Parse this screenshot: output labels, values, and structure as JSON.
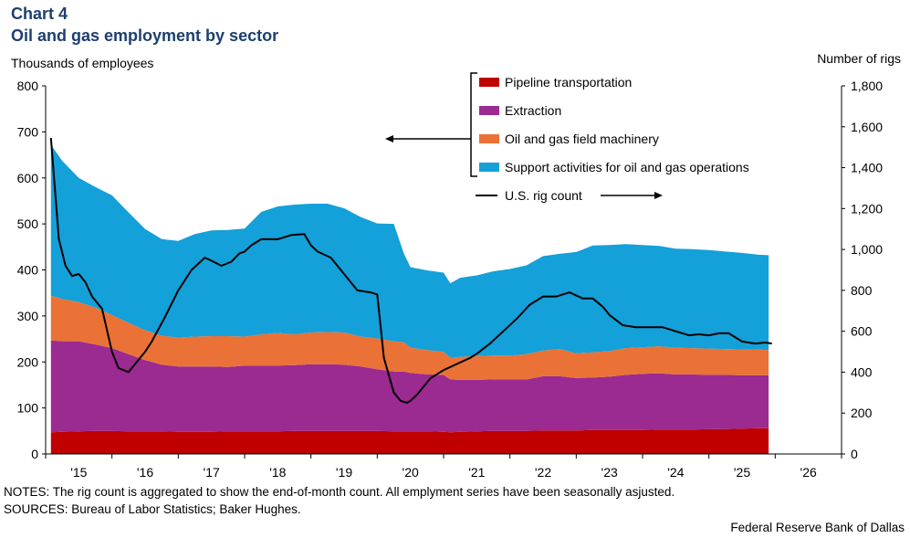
{
  "chart_number": "Chart 4",
  "chart_title": "Oil and gas employment by sector",
  "notes": "NOTES: The rig count is aggregated to show the end-of-month count. All emplyment series have been seasonally asjusted.",
  "sources": "SOURCES: Bureau of Labor Statistics; Baker Hughes.",
  "credit": "Federal Reserve Bank of Dallas",
  "colors": {
    "pipeline": "#c00000",
    "extraction": "#9b2a91",
    "machinery": "#ea7236",
    "support": "#14a0d8",
    "rig": "#000000"
  },
  "chart_data": {
    "type": "area",
    "xlabel": "",
    "ylabel": "Thousands  of employees",
    "y2label": "Number of rigs",
    "ylim": [
      0,
      800
    ],
    "y2lim": [
      0,
      1800
    ],
    "xlim": [
      2014.5,
      2026.5
    ],
    "xtick_values": [
      2015,
      2016,
      2017,
      2018,
      2019,
      2020,
      2021,
      2022,
      2023,
      2024,
      2025,
      2026
    ],
    "xtick_labels": [
      "'15",
      "'16",
      "'17",
      "'18",
      "'19",
      "'20",
      "'21",
      "'22",
      "'23",
      "'24",
      "'25",
      "'26"
    ],
    "ytick_values": [
      0,
      100,
      200,
      300,
      400,
      500,
      600,
      700,
      800
    ],
    "ytick_labels": [
      "0",
      "100",
      "200",
      "300",
      "400",
      "500",
      "600",
      "700",
      "800"
    ],
    "y2tick_values": [
      0,
      200,
      400,
      600,
      800,
      1000,
      1200,
      1400,
      1600,
      1800
    ],
    "y2tick_labels": [
      "0",
      "200",
      "400",
      "600",
      "800",
      "1,000",
      "1,200",
      "1,400",
      "1,600",
      "1,800"
    ],
    "legend_position": "top-center",
    "x": [
      2014.58,
      2014.75,
      2015.0,
      2015.25,
      2015.5,
      2015.75,
      2016.0,
      2016.25,
      2016.5,
      2016.75,
      2017.0,
      2017.25,
      2017.5,
      2017.75,
      2018.0,
      2018.25,
      2018.5,
      2018.75,
      2019.0,
      2019.25,
      2019.5,
      2019.75,
      2019.9,
      2020.0,
      2020.25,
      2020.5,
      2020.6,
      2020.75,
      2021.0,
      2021.25,
      2021.5,
      2021.75,
      2022.0,
      2022.25,
      2022.5,
      2022.75,
      2023.0,
      2023.25,
      2023.5,
      2023.75,
      2024.0,
      2024.25,
      2024.5,
      2024.75,
      2025.0,
      2025.25,
      2025.4
    ],
    "series": [
      {
        "name": "Pipeline transportation",
        "values": [
          47,
          48,
          49,
          50,
          50,
          49,
          49,
          49,
          48,
          48,
          48,
          49,
          49,
          49,
          49,
          50,
          50,
          50,
          50,
          50,
          50,
          49,
          49,
          49,
          49,
          48,
          47,
          48,
          49,
          50,
          50,
          50,
          51,
          51,
          51,
          52,
          52,
          52,
          52,
          53,
          53,
          53,
          54,
          54,
          55,
          56,
          56
        ]
      },
      {
        "name": "Extraction",
        "values": [
          200,
          197,
          196,
          188,
          180,
          168,
          155,
          145,
          142,
          142,
          142,
          140,
          143,
          143,
          143,
          143,
          145,
          145,
          144,
          140,
          134,
          130,
          130,
          127,
          124,
          124,
          115,
          113,
          112,
          112,
          112,
          112,
          118,
          118,
          114,
          114,
          116,
          120,
          122,
          122,
          120,
          120,
          118,
          118,
          116,
          115,
          115
        ]
      },
      {
        "name": "Oil and gas field machinery",
        "values": [
          97,
          92,
          85,
          80,
          72,
          68,
          65,
          63,
          63,
          65,
          66,
          67,
          63,
          68,
          71,
          67,
          69,
          70,
          70,
          65,
          67,
          66,
          64,
          55,
          53,
          50,
          47,
          50,
          52,
          52,
          52,
          55,
          56,
          59,
          54,
          55,
          56,
          58,
          58,
          59,
          58,
          57,
          57,
          56,
          56,
          56,
          55
        ]
      },
      {
        "name": "Support activities for oil and gas operations",
        "values": [
          328,
          300,
          270,
          262,
          260,
          240,
          220,
          210,
          210,
          223,
          230,
          231,
          235,
          266,
          275,
          282,
          280,
          279,
          270,
          260,
          250,
          255,
          193,
          175,
          173,
          172,
          162,
          172,
          175,
          183,
          188,
          193,
          205,
          207,
          220,
          232,
          230,
          226,
          222,
          218,
          215,
          215,
          214,
          212,
          210,
          206,
          206
        ]
      },
      {
        "name": "U.S. rig count",
        "axis": "right",
        "x": [
          2014.58,
          2014.7,
          2014.8,
          2014.9,
          2015.0,
          2015.1,
          2015.2,
          2015.35,
          2015.5,
          2015.6,
          2015.75,
          2015.9,
          2016.0,
          2016.1,
          2016.3,
          2016.5,
          2016.7,
          2016.9,
          2017.0,
          2017.15,
          2017.3,
          2017.42,
          2017.5,
          2017.6,
          2017.75,
          2017.9,
          2018.0,
          2018.2,
          2018.4,
          2018.5,
          2018.6,
          2018.8,
          2019.0,
          2019.2,
          2019.4,
          2019.5,
          2019.6,
          2019.75,
          2019.85,
          2019.95,
          2020.0,
          2020.1,
          2020.2,
          2020.3,
          2020.5,
          2020.7,
          2020.9,
          2021.0,
          2021.2,
          2021.4,
          2021.6,
          2021.8,
          2022.0,
          2022.2,
          2022.4,
          2022.6,
          2022.75,
          2022.9,
          2023.0,
          2023.2,
          2023.4,
          2023.6,
          2023.8,
          2024.0,
          2024.2,
          2024.35,
          2024.5,
          2024.65,
          2024.8,
          2025.0,
          2025.2,
          2025.35,
          2025.45
        ],
        "values": [
          1545,
          1050,
          920,
          870,
          880,
          840,
          770,
          710,
          500,
          420,
          400,
          460,
          500,
          550,
          670,
          800,
          900,
          960,
          945,
          920,
          940,
          980,
          990,
          1020,
          1050,
          1050,
          1050,
          1070,
          1075,
          1020,
          990,
          960,
          880,
          800,
          790,
          780,
          470,
          300,
          260,
          250,
          260,
          290,
          330,
          370,
          410,
          440,
          470,
          490,
          540,
          600,
          660,
          730,
          770,
          770,
          790,
          760,
          760,
          720,
          680,
          630,
          620,
          620,
          620,
          600,
          580,
          585,
          580,
          590,
          590,
          550,
          540,
          545,
          540
        ]
      }
    ]
  }
}
